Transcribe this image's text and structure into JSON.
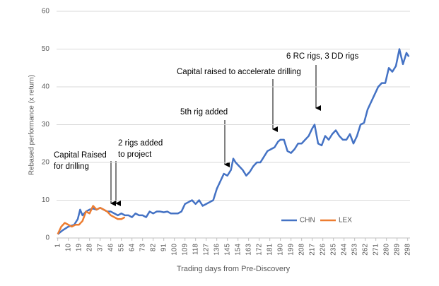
{
  "chart_data": {
    "type": "line",
    "ylabel": "Rebased performance (x return)",
    "xlabel": "Trading days from Pre-Discovery",
    "xlim": [
      0,
      300
    ],
    "xticks": [
      1,
      10,
      19,
      28,
      37,
      46,
      55,
      64,
      73,
      82,
      91,
      100,
      109,
      118,
      127,
      136,
      145,
      154,
      163,
      172,
      181,
      190,
      199,
      208,
      217,
      226,
      235,
      244,
      253,
      262,
      271,
      280,
      289,
      298
    ],
    "ylim": [
      0,
      60
    ],
    "yticks": [
      0,
      10,
      20,
      30,
      40,
      50,
      60
    ],
    "grid": true,
    "legend": "bottom-right",
    "series": [
      {
        "name": "CHN",
        "color": "#4472c4",
        "x": [
          1,
          5,
          10,
          15,
          18,
          20,
          22,
          25,
          28,
          31,
          34,
          37,
          40,
          43,
          46,
          49,
          52,
          55,
          58,
          61,
          64,
          67,
          70,
          73,
          76,
          79,
          82,
          85,
          88,
          91,
          94,
          97,
          100,
          103,
          106,
          109,
          112,
          115,
          118,
          121,
          124,
          127,
          130,
          133,
          136,
          139,
          142,
          145,
          148,
          150,
          152,
          155,
          158,
          161,
          164,
          167,
          170,
          173,
          176,
          179,
          182,
          185,
          188,
          190,
          193,
          196,
          199,
          202,
          205,
          208,
          211,
          214,
          217,
          219,
          222,
          225,
          228,
          231,
          234,
          237,
          240,
          243,
          246,
          249,
          252,
          255,
          258,
          261,
          264,
          267,
          270,
          273,
          276,
          279,
          282,
          285,
          288,
          291,
          294,
          297,
          299
        ],
        "values": [
          1,
          2,
          3,
          3.5,
          5,
          7.5,
          6,
          7,
          7.5,
          7.8,
          7.5,
          8,
          7.5,
          7,
          7,
          6.5,
          6,
          6.5,
          6,
          6,
          5.5,
          6.5,
          6,
          6,
          5.5,
          7,
          6.5,
          7,
          7,
          6.8,
          7,
          6.5,
          6.5,
          6.5,
          7,
          9,
          9.5,
          10,
          9,
          10,
          8.5,
          9,
          9.5,
          10,
          13,
          15,
          17,
          16.5,
          18,
          21,
          20,
          19,
          18,
          16.5,
          17.5,
          19,
          20,
          20,
          21.5,
          23,
          23.5,
          24,
          25.5,
          26,
          26,
          23,
          22.5,
          23.5,
          25,
          25,
          26,
          27,
          29,
          30,
          25,
          24.5,
          27,
          26,
          27.5,
          28.5,
          27,
          26,
          26,
          27.5,
          25,
          27,
          30,
          30.5,
          34,
          36,
          38,
          40,
          41,
          41,
          45,
          44,
          45.5,
          50,
          46,
          49,
          48
        ]
      },
      {
        "name": "LEX",
        "color": "#ed7d31",
        "x": [
          1,
          4,
          7,
          10,
          13,
          16,
          19,
          22,
          25,
          28,
          31,
          34,
          37,
          40,
          43,
          46,
          49,
          52,
          55,
          58
        ],
        "values": [
          1,
          3,
          4,
          3.5,
          3,
          3.5,
          3.5,
          4.5,
          7,
          6.5,
          8.5,
          7.5,
          8,
          7.5,
          7,
          6,
          5.5,
          5,
          5,
          5.5
        ]
      }
    ],
    "annotations": [
      [
        "Capital Raised",
        "for drilling"
      ],
      [
        "2 rigs added",
        "to project"
      ],
      [
        "5th rig added"
      ],
      [
        "Capital raised to accelerate drilling"
      ],
      [
        "6 RC rigs, 3 DD rigs"
      ]
    ]
  }
}
